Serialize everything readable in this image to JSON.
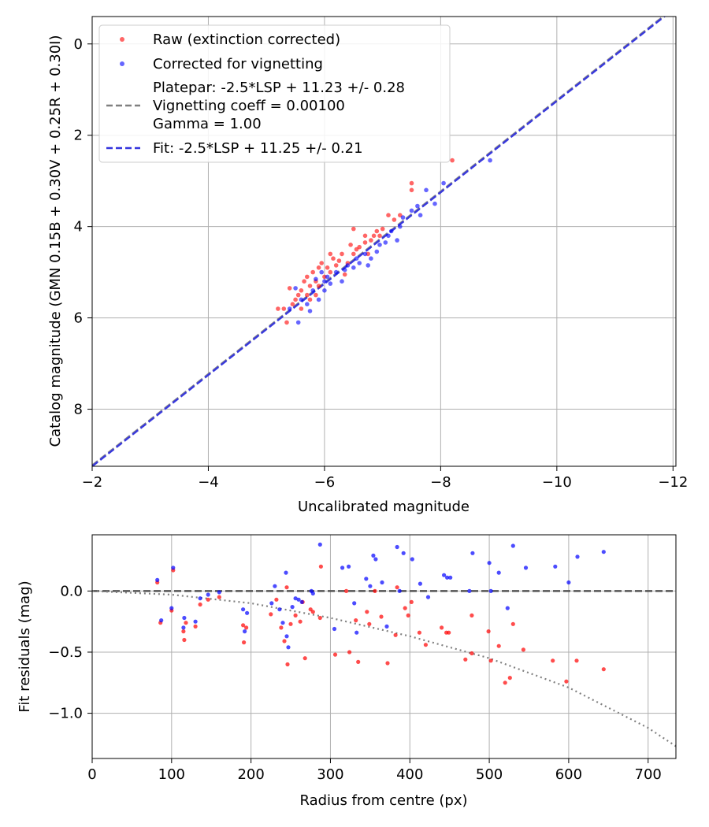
{
  "chart_data": [
    {
      "type": "scatter",
      "xlabel": "Uncalibrated magnitude",
      "ylabel": "Catalog magnitude (GMN 0.15B + 0.30V + 0.25R + 0.30I)",
      "xlim": [
        -2,
        -12.05
      ],
      "ylim": [
        9.25,
        -0.6
      ],
      "xticks": [
        -2,
        -4,
        -6,
        -8,
        -10,
        -12
      ],
      "xtick_labels": [
        "−2",
        "−4",
        "−6",
        "−8",
        "−10",
        "−12"
      ],
      "yticks": [
        0,
        2,
        4,
        6,
        8
      ],
      "yticks_labels": [
        "0",
        "2",
        "4",
        "6",
        "8"
      ],
      "grid": true,
      "legend_position": "top-left",
      "legend": {
        "raw": "Raw (extinction corrected)",
        "corrected": "Corrected for vignetting",
        "platepar_line1": "Platepar: -2.5*LSP + 11.23 +/- 0.28",
        "platepar_line2": "Vignetting coeff = 0.00100",
        "platepar_line3": "Gamma = 1.00",
        "fit": "Fit: -2.5*LSP + 11.25 +/- 0.21"
      },
      "colors": {
        "raw": "#ff0000",
        "corrected": "#0000ff",
        "platepar_line": "#808080",
        "fit_line": "#3333dd",
        "grid": "#b0b0b0"
      },
      "lines": [
        {
          "name": "platepar",
          "slope": -2.5,
          "intercept": 11.23,
          "style": "dashed"
        },
        {
          "name": "fit",
          "slope": -2.5,
          "intercept": 11.25,
          "style": "dashed"
        }
      ],
      "series": [
        {
          "name": "Raw (extinction corrected)",
          "color": "#ff0000",
          "points": [
            [
              -5.2,
              5.8
            ],
            [
              -5.3,
              5.8
            ],
            [
              -5.35,
              6.1
            ],
            [
              -5.4,
              5.35
            ],
            [
              -5.45,
              5.7
            ],
            [
              -5.5,
              5.6
            ],
            [
              -5.55,
              5.5
            ],
            [
              -5.6,
              5.4
            ],
            [
              -5.6,
              5.8
            ],
            [
              -5.65,
              5.2
            ],
            [
              -5.7,
              5.5
            ],
            [
              -5.7,
              5.1
            ],
            [
              -5.75,
              5.3
            ],
            [
              -5.75,
              5.6
            ],
            [
              -5.8,
              5.0
            ],
            [
              -5.85,
              5.2
            ],
            [
              -5.85,
              5.5
            ],
            [
              -5.9,
              4.9
            ],
            [
              -5.9,
              5.3
            ],
            [
              -5.95,
              4.8
            ],
            [
              -6.0,
              5.1
            ],
            [
              -6.05,
              4.9
            ],
            [
              -6.1,
              5.0
            ],
            [
              -6.1,
              4.6
            ],
            [
              -6.15,
              4.7
            ],
            [
              -6.2,
              4.85
            ],
            [
              -6.25,
              4.75
            ],
            [
              -6.3,
              4.6
            ],
            [
              -6.35,
              5.05
            ],
            [
              -6.4,
              4.8
            ],
            [
              -6.45,
              4.4
            ],
            [
              -6.5,
              4.05
            ],
            [
              -6.5,
              4.6
            ],
            [
              -6.55,
              4.5
            ],
            [
              -6.6,
              4.45
            ],
            [
              -6.7,
              4.2
            ],
            [
              -6.7,
              4.35
            ],
            [
              -6.75,
              4.6
            ],
            [
              -6.8,
              4.3
            ],
            [
              -6.85,
              4.2
            ],
            [
              -6.9,
              4.1
            ],
            [
              -6.95,
              4.2
            ],
            [
              -7.0,
              4.05
            ],
            [
              -7.1,
              3.75
            ],
            [
              -7.2,
              3.85
            ],
            [
              -7.3,
              3.75
            ],
            [
              -7.5,
              3.2
            ],
            [
              -7.5,
              3.05
            ],
            [
              -8.2,
              2.55
            ]
          ]
        },
        {
          "name": "Corrected for vignetting",
          "color": "#0000ff",
          "points": [
            [
              -5.4,
              5.8
            ],
            [
              -5.5,
              5.35
            ],
            [
              -5.55,
              6.1
            ],
            [
              -5.6,
              5.6
            ],
            [
              -5.7,
              5.7
            ],
            [
              -5.75,
              5.85
            ],
            [
              -5.8,
              5.4
            ],
            [
              -5.85,
              5.15
            ],
            [
              -5.9,
              5.6
            ],
            [
              -5.95,
              5.0
            ],
            [
              -6.0,
              5.4
            ],
            [
              -6.0,
              5.2
            ],
            [
              -6.05,
              5.1
            ],
            [
              -6.1,
              5.25
            ],
            [
              -6.2,
              5.0
            ],
            [
              -6.3,
              5.2
            ],
            [
              -6.35,
              4.95
            ],
            [
              -6.4,
              4.85
            ],
            [
              -6.5,
              4.9
            ],
            [
              -6.55,
              4.7
            ],
            [
              -6.6,
              4.8
            ],
            [
              -6.7,
              4.6
            ],
            [
              -6.75,
              4.85
            ],
            [
              -6.8,
              4.7
            ],
            [
              -6.9,
              4.55
            ],
            [
              -6.95,
              4.4
            ],
            [
              -7.05,
              4.35
            ],
            [
              -7.1,
              4.2
            ],
            [
              -7.15,
              4.1
            ],
            [
              -7.25,
              4.3
            ],
            [
              -7.3,
              4.0
            ],
            [
              -7.35,
              3.8
            ],
            [
              -7.5,
              3.65
            ],
            [
              -7.6,
              3.55
            ],
            [
              -7.65,
              3.75
            ],
            [
              -7.75,
              3.2
            ],
            [
              -7.9,
              3.5
            ],
            [
              -8.05,
              3.05
            ],
            [
              -8.85,
              2.55
            ]
          ]
        }
      ]
    },
    {
      "type": "scatter",
      "xlabel": "Radius from centre (px)",
      "ylabel": "Fit residuals (mag)",
      "xlim": [
        0,
        735
      ],
      "ylim": [
        -1.37,
        0.46
      ],
      "xticks": [
        0,
        100,
        200,
        300,
        400,
        500,
        600,
        700
      ],
      "xtick_labels": [
        "0",
        "100",
        "200",
        "300",
        "400",
        "500",
        "600",
        "700"
      ],
      "yticks": [
        0.0,
        -0.5,
        -1.0
      ],
      "yticks_labels": [
        "0.0",
        "−0.5",
        "−1.0"
      ],
      "grid": true,
      "colors": {
        "raw": "#ff0000",
        "corrected": "#0000ff",
        "zero_line": "#555555",
        "model_line": "#808080"
      },
      "lines": [
        {
          "name": "zero",
          "y": 0,
          "style": "dashed"
        },
        {
          "name": "vignetting model",
          "style": "dotted",
          "points": [
            [
              0,
              0
            ],
            [
              100,
              -0.03
            ],
            [
              200,
              -0.1
            ],
            [
              300,
              -0.22
            ],
            [
              400,
              -0.37
            ],
            [
              500,
              -0.55
            ],
            [
              600,
              -0.79
            ],
            [
              700,
              -1.12
            ],
            [
              735,
              -1.27
            ]
          ]
        }
      ],
      "series": [
        {
          "name": "Raw (extinction corrected)",
          "color": "#ff0000",
          "points": [
            [
              82,
              0.07
            ],
            [
              86,
              -0.26
            ],
            [
              100,
              -0.16
            ],
            [
              102,
              0.17
            ],
            [
              115,
              -0.33
            ],
            [
              116,
              -0.4
            ],
            [
              118,
              -0.26
            ],
            [
              130,
              -0.29
            ],
            [
              136,
              -0.11
            ],
            [
              146,
              -0.07
            ],
            [
              160,
              -0.05
            ],
            [
              190,
              -0.28
            ],
            [
              191,
              -0.42
            ],
            [
              194,
              -0.3
            ],
            [
              225,
              -0.19
            ],
            [
              232,
              -0.07
            ],
            [
              238,
              -0.3
            ],
            [
              242,
              -0.41
            ],
            [
              245,
              0.03
            ],
            [
              246,
              -0.6
            ],
            [
              250,
              -0.27
            ],
            [
              256,
              -0.2
            ],
            [
              262,
              -0.25
            ],
            [
              265,
              -0.09
            ],
            [
              268,
              -0.55
            ],
            [
              275,
              -0.15
            ],
            [
              278,
              -0.17
            ],
            [
              287,
              -0.22
            ],
            [
              288,
              0.2
            ],
            [
              306,
              -0.52
            ],
            [
              320,
              0.0
            ],
            [
              324,
              -0.5
            ],
            [
              332,
              -0.24
            ],
            [
              335,
              -0.58
            ],
            [
              346,
              -0.17
            ],
            [
              349,
              -0.27
            ],
            [
              356,
              0.0
            ],
            [
              364,
              -0.21
            ],
            [
              372,
              -0.59
            ],
            [
              384,
              0.03
            ],
            [
              382,
              -0.36
            ],
            [
              394,
              -0.14
            ],
            [
              398,
              -0.2
            ],
            [
              402,
              -0.09
            ],
            [
              412,
              -0.34
            ],
            [
              420,
              -0.44
            ],
            [
              440,
              -0.3
            ],
            [
              446,
              -0.34
            ],
            [
              449,
              -0.34
            ],
            [
              470,
              -0.56
            ],
            [
              478,
              -0.2
            ],
            [
              478,
              -0.51
            ],
            [
              499,
              -0.33
            ],
            [
              502,
              -0.57
            ],
            [
              512,
              -0.45
            ],
            [
              520,
              -0.75
            ],
            [
              526,
              -0.71
            ],
            [
              530,
              -0.27
            ],
            [
              543,
              -0.48
            ],
            [
              580,
              -0.57
            ],
            [
              597,
              -0.74
            ],
            [
              610,
              -0.57
            ],
            [
              644,
              -0.64
            ]
          ]
        },
        {
          "name": "Corrected for vignetting",
          "color": "#0000ff",
          "points": [
            [
              82,
              0.09
            ],
            [
              87,
              -0.24
            ],
            [
              100,
              -0.14
            ],
            [
              102,
              0.19
            ],
            [
              115,
              -0.3
            ],
            [
              116,
              -0.22
            ],
            [
              130,
              -0.25
            ],
            [
              136,
              -0.06
            ],
            [
              146,
              -0.03
            ],
            [
              160,
              -0.01
            ],
            [
              190,
              -0.15
            ],
            [
              192,
              -0.33
            ],
            [
              195,
              -0.18
            ],
            [
              226,
              -0.1
            ],
            [
              230,
              0.04
            ],
            [
              236,
              -0.15
            ],
            [
              240,
              -0.26
            ],
            [
              244,
              0.15
            ],
            [
              245,
              -0.37
            ],
            [
              247,
              -0.46
            ],
            [
              252,
              -0.13
            ],
            [
              256,
              -0.06
            ],
            [
              260,
              -0.07
            ],
            [
              264,
              -0.09
            ],
            [
              276,
              0.0
            ],
            [
              278,
              -0.02
            ],
            [
              287,
              0.38
            ],
            [
              305,
              -0.31
            ],
            [
              315,
              0.19
            ],
            [
              323,
              0.2
            ],
            [
              330,
              -0.1
            ],
            [
              333,
              -0.34
            ],
            [
              345,
              0.1
            ],
            [
              350,
              0.04
            ],
            [
              354,
              0.29
            ],
            [
              357,
              0.26
            ],
            [
              365,
              0.07
            ],
            [
              371,
              -0.29
            ],
            [
              384,
              0.36
            ],
            [
              387,
              0.0
            ],
            [
              392,
              0.31
            ],
            [
              403,
              0.26
            ],
            [
              413,
              0.06
            ],
            [
              423,
              -0.05
            ],
            [
              443,
              0.13
            ],
            [
              447,
              0.11
            ],
            [
              451,
              0.11
            ],
            [
              475,
              0.0
            ],
            [
              479,
              0.31
            ],
            [
              500,
              0.23
            ],
            [
              502,
              0.0
            ],
            [
              512,
              0.15
            ],
            [
              523,
              -0.14
            ],
            [
              530,
              0.37
            ],
            [
              546,
              0.19
            ],
            [
              583,
              0.2
            ],
            [
              600,
              0.07
            ],
            [
              611,
              0.28
            ],
            [
              644,
              0.32
            ]
          ]
        }
      ]
    }
  ]
}
